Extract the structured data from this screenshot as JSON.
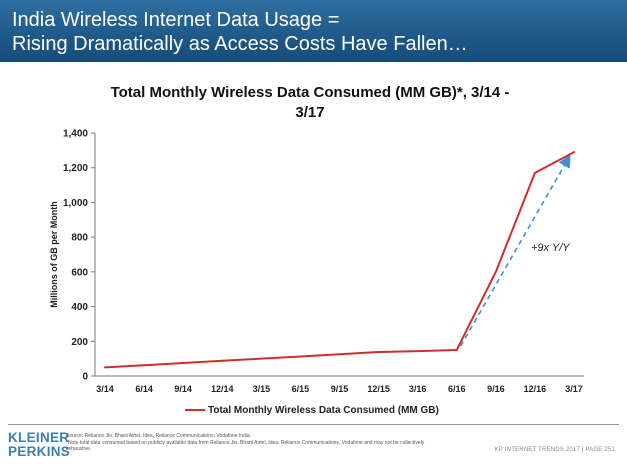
{
  "header": {
    "title_line1": "India Wireless Internet Data Usage =",
    "title_line2": "Rising Dramatically as Access Costs Have Fallen…"
  },
  "chart_data": {
    "type": "line",
    "title": "Total Monthly Wireless Data Consumed (MM GB)*, 3/14 - 3/17",
    "title_line1": "Total Monthly Wireless Data Consumed (MM GB)*, 3/14 -",
    "title_line2": "3/17",
    "ylabel": "Millions of GB per Month",
    "xlabel": "",
    "categories": [
      "3/14",
      "6/14",
      "9/14",
      "12/14",
      "3/15",
      "6/15",
      "9/15",
      "12/15",
      "3/16",
      "6/16",
      "9/16",
      "12/16",
      "3/17"
    ],
    "series": [
      {
        "name": "Total Monthly Wireless Data Consumed (MM GB)",
        "color": "#d12d2b",
        "values": [
          50,
          62,
          75,
          88,
          100,
          112,
          125,
          138,
          143,
          150,
          600,
          1170,
          1290
        ]
      }
    ],
    "ylim": [
      0,
      1400
    ],
    "yticks": [
      0,
      200,
      400,
      600,
      800,
      1000,
      1200,
      1400
    ],
    "ytick_labels": [
      "0",
      "200",
      "400",
      "600",
      "800",
      "1,000",
      "1,200",
      "1,400"
    ],
    "grid": false,
    "legend_position": "bottom",
    "annotation": {
      "text": "+9x Y/Y",
      "arrow_from": {
        "x": "6/16",
        "y": 150
      },
      "arrow_to": {
        "x": "3/17",
        "y": 1260
      },
      "arrow_color": "#3f8fd6"
    }
  },
  "footer": {
    "logo_line1": "KLEINER",
    "logo_line2": "PERKINS",
    "source": "Source: Reliance Jio, Bharti Airtel, Idea, Reliance Communications, Vodafone India.",
    "note": "*Note total data consumed based on publicly available data from Reliance Jio, Bharti Airtel, Idea, Reliance Communications, Vodafone and may not be collectively exhaustive.",
    "report": "KP INTERNET TRENDS 2017",
    "page": "PAGE 251"
  }
}
